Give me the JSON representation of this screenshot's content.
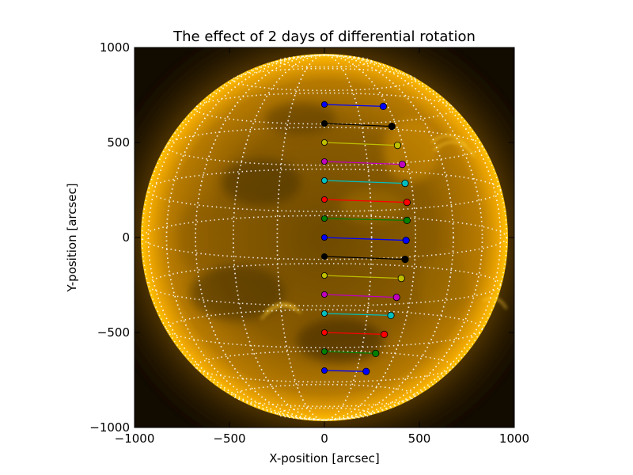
{
  "chart_data": {
    "type": "scatter",
    "title": "The effect of 2 days of differential rotation",
    "xlabel": "X-position [arcsec]",
    "ylabel": "Y-position [arcsec]",
    "xlim": [
      -1000,
      1000
    ],
    "ylim": [
      -1000,
      1000
    ],
    "xticks": [
      -1000,
      -500,
      0,
      500,
      1000
    ],
    "yticks": [
      -1000,
      -500,
      0,
      500,
      1000
    ],
    "xtick_labels": [
      "−1000",
      "−500",
      "0",
      "500",
      "1000"
    ],
    "ytick_labels": [
      "−1000",
      "−500",
      "0",
      "500",
      "1000"
    ],
    "background": "solar disk image (SDO/AIA 171-style, orange) with heliographic grid",
    "solar_radius_arcsec": 960,
    "series": [
      {
        "color": "#0000ff",
        "start": [
          0,
          700
        ],
        "end": [
          310,
          690
        ]
      },
      {
        "color": "#000000",
        "start": [
          0,
          600
        ],
        "end": [
          355,
          585
        ]
      },
      {
        "color": "#bfbf00",
        "start": [
          0,
          500
        ],
        "end": [
          385,
          485
        ]
      },
      {
        "color": "#bf00bf",
        "start": [
          0,
          400
        ],
        "end": [
          410,
          385
        ]
      },
      {
        "color": "#00bfbf",
        "start": [
          0,
          300
        ],
        "end": [
          425,
          285
        ]
      },
      {
        "color": "#ff0000",
        "start": [
          0,
          200
        ],
        "end": [
          435,
          185
        ]
      },
      {
        "color": "#008000",
        "start": [
          0,
          100
        ],
        "end": [
          435,
          90
        ]
      },
      {
        "color": "#0000ff",
        "start": [
          0,
          0
        ],
        "end": [
          430,
          -15
        ]
      },
      {
        "color": "#000000",
        "start": [
          0,
          -100
        ],
        "end": [
          425,
          -115
        ]
      },
      {
        "color": "#bfbf00",
        "start": [
          0,
          -200
        ],
        "end": [
          405,
          -215
        ]
      },
      {
        "color": "#bf00bf",
        "start": [
          0,
          -300
        ],
        "end": [
          380,
          -315
        ]
      },
      {
        "color": "#00bfbf",
        "start": [
          0,
          -400
        ],
        "end": [
          350,
          -410
        ]
      },
      {
        "color": "#ff0000",
        "start": [
          0,
          -500
        ],
        "end": [
          315,
          -510
        ]
      },
      {
        "color": "#008000",
        "start": [
          0,
          -600
        ],
        "end": [
          270,
          -610
        ]
      },
      {
        "color": "#0000ff",
        "start": [
          0,
          -700
        ],
        "end": [
          220,
          -705
        ]
      }
    ]
  }
}
